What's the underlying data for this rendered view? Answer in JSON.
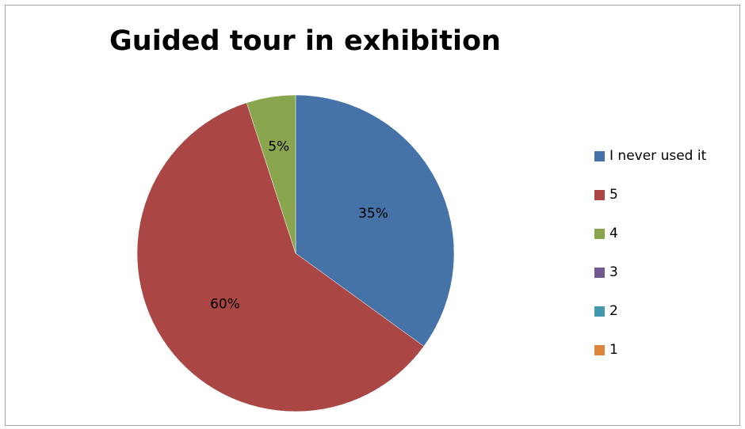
{
  "chart_data": {
    "type": "pie",
    "title": "Guided tour in exhibition",
    "legend_position": "right",
    "categories": [
      "I never used it",
      "5",
      "4",
      "3",
      "2",
      "1"
    ],
    "values": [
      35,
      60,
      5,
      0,
      0,
      0
    ],
    "value_unit": "%",
    "data_labels": [
      "35%",
      "60%",
      "5%",
      "",
      "",
      ""
    ],
    "colors": [
      "#4572A7",
      "#AA4643",
      "#89A54E",
      "#71588F",
      "#4198AF",
      "#DB843D"
    ]
  }
}
